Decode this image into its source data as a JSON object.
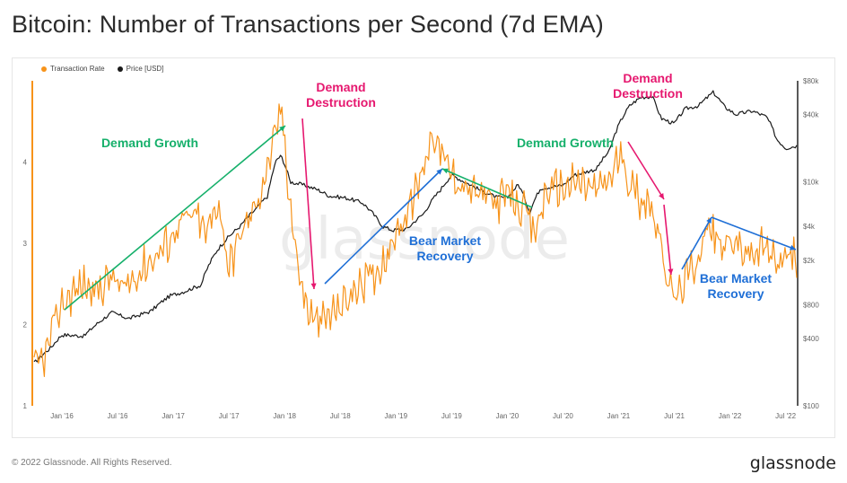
{
  "header": {
    "title": "Bitcoin: Number of Transactions per Second (7d EMA)"
  },
  "footer": {
    "copyright": "© 2022 Glassnode. All Rights Reserved.",
    "brand": "glassnode"
  },
  "watermark": "glassnode",
  "colors": {
    "rate": "#f7931a",
    "price": "#1a1a1a",
    "growth": "#16b06b",
    "destruction": "#e6186f",
    "recovery": "#1f6fd6"
  },
  "chart_data": {
    "type": "line",
    "title": "Bitcoin: Number of Transactions per Second (7d EMA)",
    "legend": [
      "Transaction Rate",
      "Price [USD]"
    ],
    "x_ticks": [
      "Jan '16",
      "Jul '16",
      "Jan '17",
      "Jul '17",
      "Jan '18",
      "Jul '18",
      "Jan '19",
      "Jul '19",
      "Jan '20",
      "Jul '20",
      "Jan '21",
      "Jul '21",
      "Jan '22",
      "Jul '22"
    ],
    "y_left_ticks": [
      "1",
      "2",
      "3",
      "4"
    ],
    "y_left_lim": [
      1,
      5
    ],
    "y_right_ticks": [
      "$100",
      "$400",
      "$800",
      "$2k",
      "$4k",
      "$10k",
      "$40k",
      "$80k"
    ],
    "y_right_lim": [
      100,
      80000
    ],
    "y_right_scale": "log",
    "x_range": [
      2015.75,
      2022.6
    ],
    "series": [
      {
        "name": "Transaction Rate",
        "axis": "left",
        "color": "#f7931a",
        "points": [
          [
            2015.75,
            1.45
          ],
          [
            2015.85,
            1.6
          ],
          [
            2015.93,
            2.0
          ],
          [
            2016.0,
            2.25
          ],
          [
            2016.1,
            2.4
          ],
          [
            2016.2,
            2.5
          ],
          [
            2016.3,
            2.4
          ],
          [
            2016.45,
            2.6
          ],
          [
            2016.55,
            2.4
          ],
          [
            2016.65,
            2.6
          ],
          [
            2016.8,
            2.8
          ],
          [
            2016.95,
            3.0
          ],
          [
            2017.05,
            3.25
          ],
          [
            2017.2,
            3.35
          ],
          [
            2017.3,
            3.1
          ],
          [
            2017.4,
            3.55
          ],
          [
            2017.5,
            2.7
          ],
          [
            2017.6,
            3.1
          ],
          [
            2017.72,
            3.4
          ],
          [
            2017.82,
            3.8
          ],
          [
            2017.9,
            4.2
          ],
          [
            2017.97,
            4.7
          ],
          [
            2018.05,
            3.5
          ],
          [
            2018.12,
            2.7
          ],
          [
            2018.2,
            2.2
          ],
          [
            2018.3,
            2.0
          ],
          [
            2018.4,
            2.1
          ],
          [
            2018.55,
            2.3
          ],
          [
            2018.7,
            2.5
          ],
          [
            2018.85,
            2.7
          ],
          [
            2018.95,
            2.95
          ],
          [
            2019.05,
            3.25
          ],
          [
            2019.2,
            3.7
          ],
          [
            2019.33,
            4.4
          ],
          [
            2019.45,
            3.95
          ],
          [
            2019.6,
            3.7
          ],
          [
            2019.75,
            3.6
          ],
          [
            2019.9,
            3.5
          ],
          [
            2020.0,
            3.6
          ],
          [
            2020.15,
            3.4
          ],
          [
            2020.25,
            3.1
          ],
          [
            2020.35,
            3.65
          ],
          [
            2020.5,
            3.7
          ],
          [
            2020.65,
            3.75
          ],
          [
            2020.8,
            3.65
          ],
          [
            2020.95,
            3.85
          ],
          [
            2021.0,
            4.1
          ],
          [
            2021.1,
            3.75
          ],
          [
            2021.2,
            3.55
          ],
          [
            2021.3,
            3.5
          ],
          [
            2021.4,
            2.8
          ],
          [
            2021.5,
            2.3
          ],
          [
            2021.6,
            2.55
          ],
          [
            2021.7,
            2.8
          ],
          [
            2021.8,
            3.2
          ],
          [
            2021.9,
            3.0
          ],
          [
            2022.0,
            3.0
          ],
          [
            2022.1,
            2.95
          ],
          [
            2022.2,
            2.85
          ],
          [
            2022.3,
            2.95
          ],
          [
            2022.4,
            2.8
          ],
          [
            2022.5,
            2.85
          ],
          [
            2022.6,
            2.8
          ]
        ]
      },
      {
        "name": "Price [USD]",
        "axis": "right",
        "color": "#1a1a1a",
        "points": [
          [
            2015.75,
            240
          ],
          [
            2015.9,
            330
          ],
          [
            2016.0,
            430
          ],
          [
            2016.2,
            420
          ],
          [
            2016.45,
            680
          ],
          [
            2016.6,
            600
          ],
          [
            2016.8,
            700
          ],
          [
            2016.97,
            960
          ],
          [
            2017.1,
            1050
          ],
          [
            2017.25,
            1200
          ],
          [
            2017.4,
            2500
          ],
          [
            2017.6,
            4000
          ],
          [
            2017.75,
            5800
          ],
          [
            2017.85,
            7500
          ],
          [
            2017.93,
            16000
          ],
          [
            2017.97,
            17000
          ],
          [
            2018.05,
            10000
          ],
          [
            2018.15,
            9500
          ],
          [
            2018.3,
            8500
          ],
          [
            2018.4,
            7500
          ],
          [
            2018.55,
            7200
          ],
          [
            2018.7,
            6500
          ],
          [
            2018.88,
            4000
          ],
          [
            2018.97,
            3700
          ],
          [
            2019.1,
            3800
          ],
          [
            2019.25,
            5200
          ],
          [
            2019.4,
            8500
          ],
          [
            2019.5,
            11500
          ],
          [
            2019.6,
            10200
          ],
          [
            2019.75,
            8500
          ],
          [
            2019.9,
            7300
          ],
          [
            2020.0,
            7200
          ],
          [
            2020.1,
            9500
          ],
          [
            2020.2,
            5300
          ],
          [
            2020.3,
            8800
          ],
          [
            2020.5,
            9300
          ],
          [
            2020.6,
            11500
          ],
          [
            2020.8,
            13000
          ],
          [
            2020.92,
            19000
          ],
          [
            2021.0,
            32000
          ],
          [
            2021.1,
            48000
          ],
          [
            2021.2,
            57000
          ],
          [
            2021.3,
            58000
          ],
          [
            2021.38,
            37000
          ],
          [
            2021.5,
            33000
          ],
          [
            2021.6,
            45000
          ],
          [
            2021.72,
            48000
          ],
          [
            2021.85,
            63000
          ],
          [
            2021.95,
            47000
          ],
          [
            2022.05,
            40000
          ],
          [
            2022.2,
            43000
          ],
          [
            2022.33,
            38000
          ],
          [
            2022.42,
            24000
          ],
          [
            2022.5,
            20000
          ],
          [
            2022.6,
            21000
          ]
        ]
      }
    ],
    "annotations": [
      {
        "text": [
          "Demand Growth"
        ],
        "kind": "growth"
      },
      {
        "text": [
          "Demand",
          "Destruction"
        ],
        "kind": "destruction"
      },
      {
        "text": [
          "Bear Market",
          "Recovery"
        ],
        "kind": "recovery"
      },
      {
        "text": [
          "Demand Growth"
        ],
        "kind": "growth"
      },
      {
        "text": [
          "Demand",
          "Destruction"
        ],
        "kind": "destruction"
      },
      {
        "text": [
          "Bear Market",
          "Recovery"
        ],
        "kind": "recovery"
      }
    ]
  }
}
